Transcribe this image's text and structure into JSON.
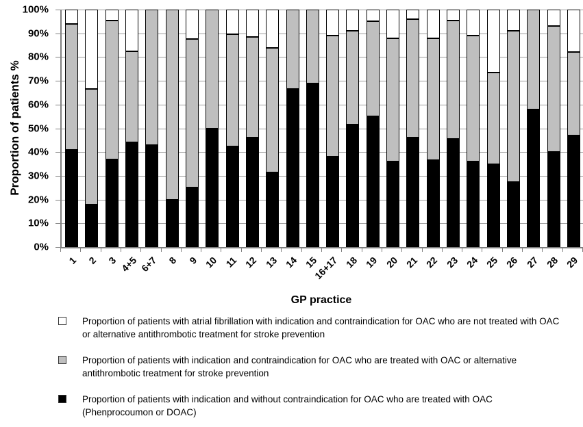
{
  "figure": {
    "background": "#ffffff"
  },
  "chart_data": {
    "type": "bar",
    "stacked": true,
    "orientation": "vertical",
    "title": "",
    "xlabel": "GP practice",
    "ylabel": "Proportion of patients %",
    "ylim": [
      0,
      100
    ],
    "ytick_step": 10,
    "ytick_labels": [
      "0%",
      "10%",
      "20%",
      "30%",
      "40%",
      "50%",
      "60%",
      "70%",
      "80%",
      "90%",
      "100%"
    ],
    "grid": true,
    "legend_position": "bottom",
    "categories": [
      "1",
      "2",
      "3",
      "4+5",
      "6+7",
      "8",
      "9",
      "10",
      "11",
      "12",
      "13",
      "14",
      "15",
      "16+17",
      "18",
      "19",
      "20",
      "21",
      "22",
      "23",
      "24",
      "25",
      "26",
      "27",
      "28",
      "29"
    ],
    "series": [
      {
        "name": "Proportion of patients with indication and without contraindication for OAC who are treated with OAC (Phenprocoumon or DOAC)",
        "color": "#000000",
        "values": [
          41,
          18,
          37,
          44,
          43,
          20,
          25,
          50,
          42.5,
          46,
          31.5,
          66.7,
          69,
          38,
          51.5,
          55,
          36,
          46,
          36.5,
          45.5,
          36,
          35,
          27.5,
          58,
          40,
          47
        ]
      },
      {
        "name": "Proportion of patients with indication and contraindication for OAC who are treated with OAC or alternative antithrombotic treatment for stroke prevention",
        "color": "#bfbfbf",
        "values": [
          53,
          48.5,
          58.5,
          38.5,
          57,
          80,
          62.5,
          50,
          47,
          42.5,
          52.5,
          33.3,
          31,
          51,
          39.5,
          40,
          52,
          50,
          51.5,
          50,
          53,
          38.5,
          63.5,
          42,
          53,
          35
        ]
      },
      {
        "name": "Proportion of patients with atrial fibrillation with indication and contraindication for OAC who are not treated with OAC or alternative antithrombotic treatment for stroke prevention",
        "color": "#ffffff",
        "values": [
          6,
          33.5,
          4.5,
          17.5,
          0,
          0,
          12.5,
          0,
          10.5,
          11.5,
          16,
          0,
          0,
          11,
          9,
          5,
          12,
          4,
          12,
          4.5,
          11,
          26.5,
          9,
          0,
          7,
          18
        ]
      }
    ],
    "legend": [
      {
        "marker_color": "#ffffff",
        "label": "Proportion of patients with atrial fibrillation with indication and contraindication for OAC who are not treated with OAC or alternative antithrombotic treatment for stroke prevention"
      },
      {
        "marker_color": "#bfbfbf",
        "label": "Proportion of patients with indication and contraindication for OAC who are treated with OAC or alternative antithrombotic treatment for stroke prevention"
      },
      {
        "marker_color": "#000000",
        "label": "Proportion of patients with indication and without contraindication for OAC who are treated with OAC (Phenprocoumon or DOAC)"
      }
    ],
    "colors": {
      "grid": "#9a9a9a",
      "axis": "#7f7f7f",
      "bar_border": "#000000"
    }
  }
}
